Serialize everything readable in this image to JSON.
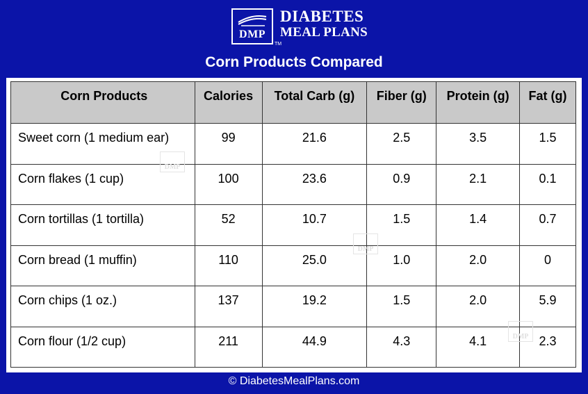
{
  "brand": {
    "abbr": "DMP",
    "tm": "TM",
    "line1": "DIABETES",
    "line2": "MEAL PLANS",
    "watermark": "DMP"
  },
  "title": "Corn Products Compared",
  "table": {
    "headers": [
      "Corn Products",
      "Calories",
      "Total Carb (g)",
      "Fiber (g)",
      "Protein (g)",
      "Fat (g)"
    ],
    "rows": [
      [
        "Sweet corn (1 medium ear)",
        "99",
        "21.6",
        "2.5",
        "3.5",
        "1.5"
      ],
      [
        "Corn flakes (1 cup)",
        "100",
        "23.6",
        "0.9",
        "2.1",
        "0.1"
      ],
      [
        "Corn tortillas (1 tortilla)",
        "52",
        "10.7",
        "1.5",
        "1.4",
        "0.7"
      ],
      [
        "Corn bread (1 muffin)",
        "110",
        "25.0",
        "1.0",
        "2.0",
        "0"
      ],
      [
        "Corn chips (1 oz.)",
        "137",
        "19.2",
        "1.5",
        "2.0",
        "5.9"
      ],
      [
        "Corn flour (1/2 cup)",
        "211",
        "44.9",
        "4.3",
        "4.1",
        "2.3"
      ]
    ]
  },
  "footer": "© DiabetesMealPlans.com",
  "colors": {
    "background": "#0b14a8",
    "header_row": "#c9c9c9"
  }
}
